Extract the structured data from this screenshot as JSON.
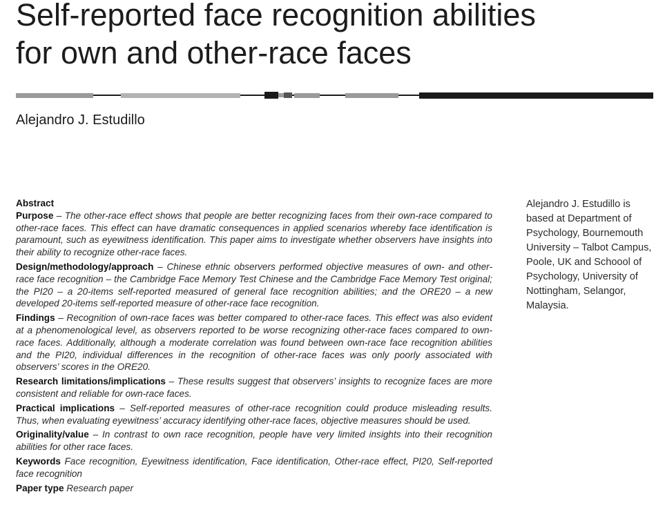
{
  "title_lines": [
    "Self-reported face recognition abilities",
    "for own and other-race faces"
  ],
  "author": "Alejandro J. Estudillo",
  "abstract": {
    "heading": "Abstract",
    "sections": [
      {
        "label": "Purpose",
        "separator": " – ",
        "text": "The other-race effect shows that people are better recognizing faces from their own-race compared to other-race faces. This effect can have dramatic consequences in applied scenarios whereby face identification is paramount, such as eyewitness identification. This paper aims to investigate whether observers have insights into their ability to recognize other-race faces."
      },
      {
        "label": "Design/methodology/approach",
        "separator": " – ",
        "text": "Chinese ethnic observers performed objective measures of own- and other-race face recognition – the Cambridge Face Memory Test Chinese and the Cambridge Face Memory Test original; the PI20 – a 20-items self-reported measured of general face recognition abilities; and the ORE20 – a new developed 20-items self-reported measure of other-race face recognition."
      },
      {
        "label": "Findings",
        "separator": " – ",
        "text": "Recognition of own-race faces was better compared to other-race faces. This effect was also evident at a phenomenological level, as observers reported to be worse recognizing other-race faces compared to own-race faces. Additionally, although a moderate correlation was found between own-race face recognition abilities and the PI20, individual differences in the recognition of other-race faces was only poorly associated with observers’ scores in the ORE20."
      },
      {
        "label": "Research limitations/implications",
        "separator": " – ",
        "text": "These results suggest that observers’ insights to recognize faces are more consistent and reliable for own-race faces."
      },
      {
        "label": "Practical implications",
        "separator": " – ",
        "text": "Self-reported measures of other-race recognition could produce misleading results. Thus, when evaluating eyewitness’ accuracy identifying other-race faces, objective measures should be used."
      },
      {
        "label": "Originality/value",
        "separator": " – ",
        "text": "In contrast to own race recognition, people have very limited insights into their recognition abilities for other race faces."
      },
      {
        "label": "Keywords",
        "separator": " ",
        "text": "Face recognition, Eyewitness identification, Face identification, Other-race effect, PI20, Self-reported face recognition"
      },
      {
        "label": "Paper type",
        "separator": " ",
        "text": "Research paper"
      }
    ]
  },
  "bio": "Alejandro J. Estudillo is based at Department of Psychology, Bournemouth University – Talbot Campus, Poole, UK and Schoool of Psychology, University of Nottingham, Selangor, Malaysia.",
  "colors": {
    "rule_dark": "#1a1a1a",
    "rule_mid": "#9a9a9a",
    "rule_light": "#b3b3b3"
  }
}
